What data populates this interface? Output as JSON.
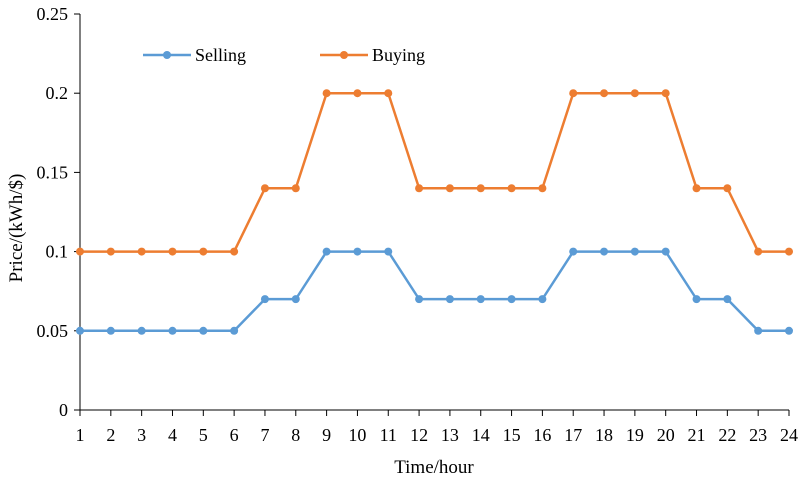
{
  "chart_data": {
    "type": "line",
    "xlabel": "Time/hour",
    "ylabel": "Price/(kWh/$)",
    "categories": [
      "1",
      "2",
      "3",
      "4",
      "5",
      "6",
      "7",
      "8",
      "9",
      "10",
      "11",
      "12",
      "13",
      "14",
      "15",
      "16",
      "17",
      "18",
      "19",
      "20",
      "21",
      "22",
      "23",
      "24"
    ],
    "ylim": [
      0,
      0.25
    ],
    "yticks": [
      "0",
      "0.05",
      "0.1",
      "0.15",
      "0.2",
      "0.25"
    ],
    "grid": false,
    "legend_position": "top-left",
    "series": [
      {
        "name": "Selling",
        "color": "#5B9BD5",
        "values": [
          0.05,
          0.05,
          0.05,
          0.05,
          0.05,
          0.05,
          0.07,
          0.07,
          0.1,
          0.1,
          0.1,
          0.07,
          0.07,
          0.07,
          0.07,
          0.07,
          0.1,
          0.1,
          0.1,
          0.1,
          0.07,
          0.07,
          0.05,
          0.05
        ]
      },
      {
        "name": "Buying",
        "color": "#ED7D31",
        "values": [
          0.1,
          0.1,
          0.1,
          0.1,
          0.1,
          0.1,
          0.14,
          0.14,
          0.2,
          0.2,
          0.2,
          0.14,
          0.14,
          0.14,
          0.14,
          0.14,
          0.2,
          0.2,
          0.2,
          0.2,
          0.14,
          0.14,
          0.1,
          0.1
        ]
      }
    ]
  }
}
